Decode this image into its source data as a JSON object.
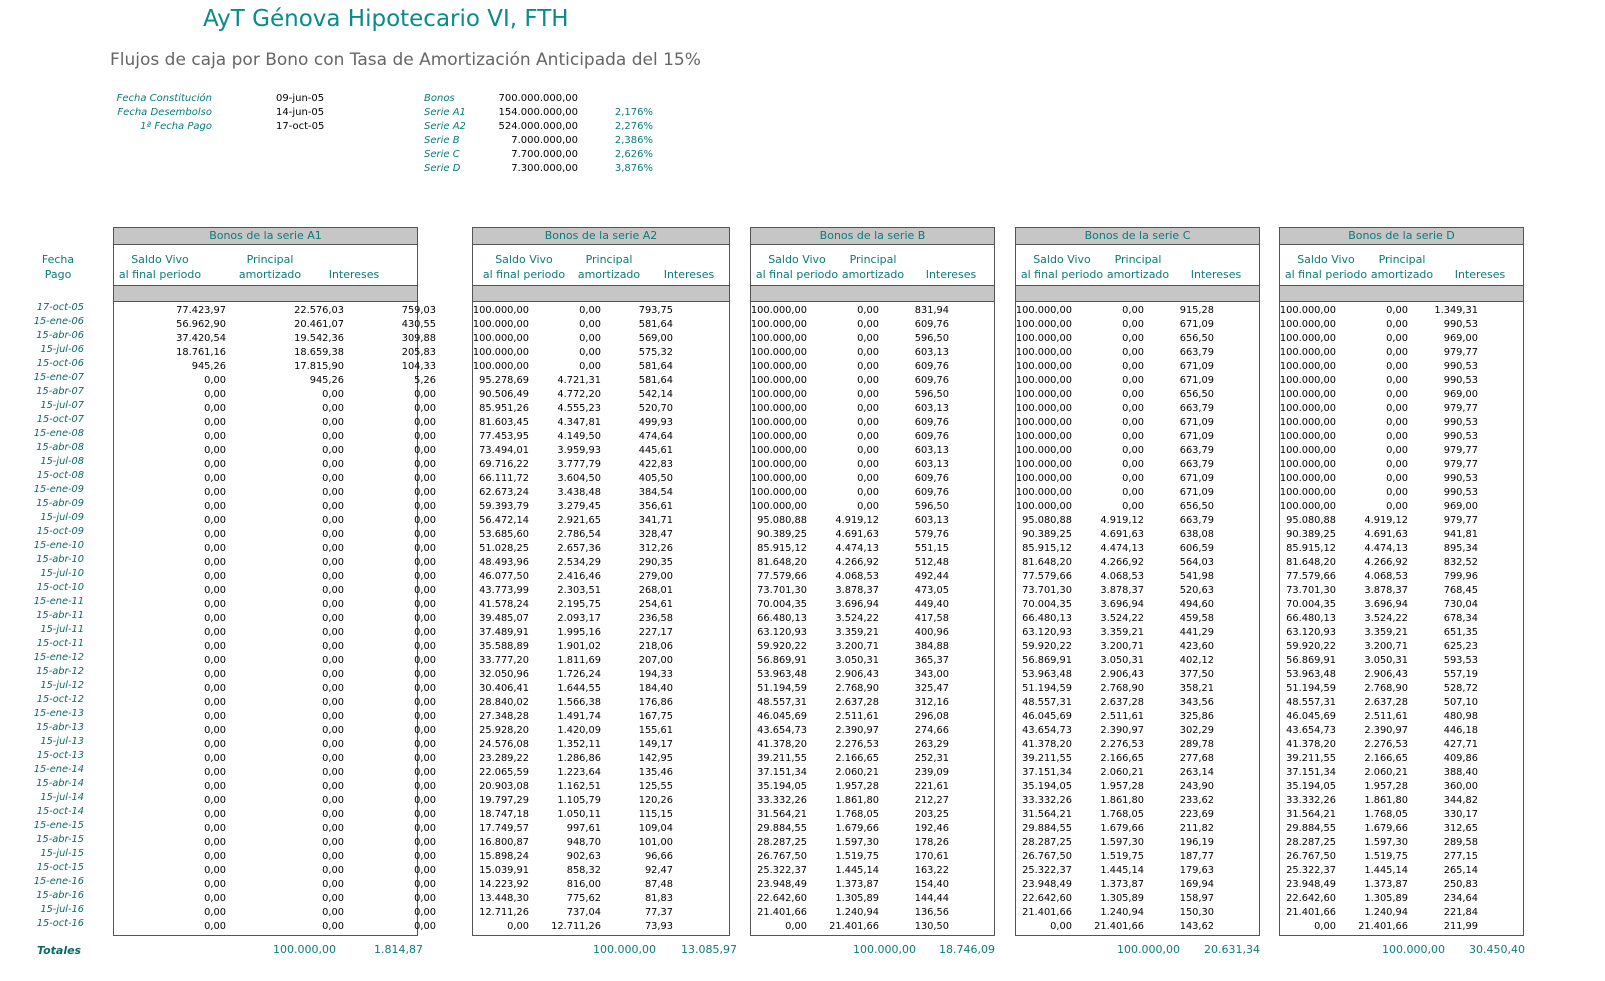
{
  "title": "AyT Génova Hipotecario VI, FTH",
  "subtitle": "Flujos de caja por Bono con Tasa de Amortización Anticipada del 15%",
  "info_left": [
    {
      "label": "Fecha Constitución",
      "value": "09-jun-05"
    },
    {
      "label": "Fecha Desembolso",
      "value": "14-jun-05"
    },
    {
      "label": "1ª Fecha Pago",
      "value": "17-oct-05"
    }
  ],
  "info_right": [
    {
      "label": "Bonos",
      "value": "700.000.000,00",
      "rate": ""
    },
    {
      "label": "Serie A1",
      "value": "154.000.000,00",
      "rate": "2,176%"
    },
    {
      "label": "Serie A2",
      "value": "524.000.000,00",
      "rate": "2,276%"
    },
    {
      "label": "Serie B",
      "value": "7.000.000,00",
      "rate": "2,386%"
    },
    {
      "label": "Serie C",
      "value": "7.700.000,00",
      "rate": "2,626%"
    },
    {
      "label": "Serie D",
      "value": "7.300.000,00",
      "rate": "3,876%"
    }
  ],
  "fecha_header": {
    "line1": "Fecha",
    "line2": "Pago"
  },
  "col_headers": {
    "saldo1": "Saldo Vivo",
    "saldo2": "al final periodo",
    "principal1": "Principal",
    "principal2": "amortizado",
    "intereses": "Intereses"
  },
  "totales_label": "Totales",
  "dates": [
    "17-oct-05",
    "15-ene-06",
    "15-abr-06",
    "15-jul-06",
    "15-oct-06",
    "15-ene-07",
    "15-abr-07",
    "15-jul-07",
    "15-oct-07",
    "15-ene-08",
    "15-abr-08",
    "15-jul-08",
    "15-oct-08",
    "15-ene-09",
    "15-abr-09",
    "15-jul-09",
    "15-oct-09",
    "15-ene-10",
    "15-abr-10",
    "15-jul-10",
    "15-oct-10",
    "15-ene-11",
    "15-abr-11",
    "15-jul-11",
    "15-oct-11",
    "15-ene-12",
    "15-abr-12",
    "15-jul-12",
    "15-oct-12",
    "15-ene-13",
    "15-abr-13",
    "15-jul-13",
    "15-oct-13",
    "15-ene-14",
    "15-abr-14",
    "15-jul-14",
    "15-oct-14",
    "15-ene-15",
    "15-abr-15",
    "15-jul-15",
    "15-oct-15",
    "15-ene-16",
    "15-abr-16",
    "15-jul-16",
    "15-oct-16"
  ],
  "series": [
    {
      "key": "a1",
      "title": "Bonos de la serie A1",
      "saldo": [
        "77.423,97",
        "56.962,90",
        "37.420,54",
        "18.761,16",
        "945,26",
        "0,00",
        "0,00",
        "0,00",
        "0,00",
        "0,00",
        "0,00",
        "0,00",
        "0,00",
        "0,00",
        "0,00",
        "0,00",
        "0,00",
        "0,00",
        "0,00",
        "0,00",
        "0,00",
        "0,00",
        "0,00",
        "0,00",
        "0,00",
        "0,00",
        "0,00",
        "0,00",
        "0,00",
        "0,00",
        "0,00",
        "0,00",
        "0,00",
        "0,00",
        "0,00",
        "0,00",
        "0,00",
        "0,00",
        "0,00",
        "0,00",
        "0,00",
        "0,00",
        "0,00",
        "0,00",
        "0,00"
      ],
      "principal": [
        "22.576,03",
        "20.461,07",
        "19.542,36",
        "18.659,38",
        "17.815,90",
        "945,26",
        "0,00",
        "0,00",
        "0,00",
        "0,00",
        "0,00",
        "0,00",
        "0,00",
        "0,00",
        "0,00",
        "0,00",
        "0,00",
        "0,00",
        "0,00",
        "0,00",
        "0,00",
        "0,00",
        "0,00",
        "0,00",
        "0,00",
        "0,00",
        "0,00",
        "0,00",
        "0,00",
        "0,00",
        "0,00",
        "0,00",
        "0,00",
        "0,00",
        "0,00",
        "0,00",
        "0,00",
        "0,00",
        "0,00",
        "0,00",
        "0,00",
        "0,00",
        "0,00",
        "0,00",
        "0,00"
      ],
      "intereses": [
        "759,03",
        "430,55",
        "309,88",
        "205,83",
        "104,33",
        "5,26",
        "0,00",
        "0,00",
        "0,00",
        "0,00",
        "0,00",
        "0,00",
        "0,00",
        "0,00",
        "0,00",
        "0,00",
        "0,00",
        "0,00",
        "0,00",
        "0,00",
        "0,00",
        "0,00",
        "0,00",
        "0,00",
        "0,00",
        "0,00",
        "0,00",
        "0,00",
        "0,00",
        "0,00",
        "0,00",
        "0,00",
        "0,00",
        "0,00",
        "0,00",
        "0,00",
        "0,00",
        "0,00",
        "0,00",
        "0,00",
        "0,00",
        "0,00",
        "0,00",
        "0,00",
        "0,00"
      ],
      "total_principal": "100.000,00",
      "total_intereses": "1.814,87"
    },
    {
      "key": "a2",
      "title": "Bonos de la serie A2",
      "saldo": [
        "100.000,00",
        "100.000,00",
        "100.000,00",
        "100.000,00",
        "100.000,00",
        "95.278,69",
        "90.506,49",
        "85.951,26",
        "81.603,45",
        "77.453,95",
        "73.494,01",
        "69.716,22",
        "66.111,72",
        "62.673,24",
        "59.393,79",
        "56.472,14",
        "53.685,60",
        "51.028,25",
        "48.493,96",
        "46.077,50",
        "43.773,99",
        "41.578,24",
        "39.485,07",
        "37.489,91",
        "35.588,89",
        "33.777,20",
        "32.050,96",
        "30.406,41",
        "28.840,02",
        "27.348,28",
        "25.928,20",
        "24.576,08",
        "23.289,22",
        "22.065,59",
        "20.903,08",
        "19.797,29",
        "18.747,18",
        "17.749,57",
        "16.800,87",
        "15.898,24",
        "15.039,91",
        "14.223,92",
        "13.448,30",
        "12.711,26",
        "0,00"
      ],
      "principal": [
        "0,00",
        "0,00",
        "0,00",
        "0,00",
        "0,00",
        "4.721,31",
        "4.772,20",
        "4.555,23",
        "4.347,81",
        "4.149,50",
        "3.959,93",
        "3.777,79",
        "3.604,50",
        "3.438,48",
        "3.279,45",
        "2.921,65",
        "2.786,54",
        "2.657,36",
        "2.534,29",
        "2.416,46",
        "2.303,51",
        "2.195,75",
        "2.093,17",
        "1.995,16",
        "1.901,02",
        "1.811,69",
        "1.726,24",
        "1.644,55",
        "1.566,38",
        "1.491,74",
        "1.420,09",
        "1.352,11",
        "1.286,86",
        "1.223,64",
        "1.162,51",
        "1.105,79",
        "1.050,11",
        "997,61",
        "948,70",
        "902,63",
        "858,32",
        "816,00",
        "775,62",
        "737,04",
        "12.711,26"
      ],
      "intereses": [
        "793,75",
        "581,64",
        "569,00",
        "575,32",
        "581,64",
        "581,64",
        "542,14",
        "520,70",
        "499,93",
        "474,64",
        "445,61",
        "422,83",
        "405,50",
        "384,54",
        "356,61",
        "341,71",
        "328,47",
        "312,26",
        "290,35",
        "279,00",
        "268,01",
        "254,61",
        "236,58",
        "227,17",
        "218,06",
        "207,00",
        "194,33",
        "184,40",
        "176,86",
        "167,75",
        "155,61",
        "149,17",
        "142,95",
        "135,46",
        "125,55",
        "120,26",
        "115,15",
        "109,04",
        "101,00",
        "96,66",
        "92,47",
        "87,48",
        "81,83",
        "77,37",
        "73,93"
      ],
      "total_principal": "100.000,00",
      "total_intereses": "13.085,97"
    },
    {
      "key": "b",
      "title": "Bonos de la serie B",
      "saldo": [
        "100.000,00",
        "100.000,00",
        "100.000,00",
        "100.000,00",
        "100.000,00",
        "100.000,00",
        "100.000,00",
        "100.000,00",
        "100.000,00",
        "100.000,00",
        "100.000,00",
        "100.000,00",
        "100.000,00",
        "100.000,00",
        "100.000,00",
        "95.080,88",
        "90.389,25",
        "85.915,12",
        "81.648,20",
        "77.579,66",
        "73.701,30",
        "70.004,35",
        "66.480,13",
        "63.120,93",
        "59.920,22",
        "56.869,91",
        "53.963,48",
        "51.194,59",
        "48.557,31",
        "46.045,69",
        "43.654,73",
        "41.378,20",
        "39.211,55",
        "37.151,34",
        "35.194,05",
        "33.332,26",
        "31.564,21",
        "29.884,55",
        "28.287,25",
        "26.767,50",
        "25.322,37",
        "23.948,49",
        "22.642,60",
        "21.401,66",
        "0,00"
      ],
      "principal": [
        "0,00",
        "0,00",
        "0,00",
        "0,00",
        "0,00",
        "0,00",
        "0,00",
        "0,00",
        "0,00",
        "0,00",
        "0,00",
        "0,00",
        "0,00",
        "0,00",
        "0,00",
        "4.919,12",
        "4.691,63",
        "4.474,13",
        "4.266,92",
        "4.068,53",
        "3.878,37",
        "3.696,94",
        "3.524,22",
        "3.359,21",
        "3.200,71",
        "3.050,31",
        "2.906,43",
        "2.768,90",
        "2.637,28",
        "2.511,61",
        "2.390,97",
        "2.276,53",
        "2.166,65",
        "2.060,21",
        "1.957,28",
        "1.861,80",
        "1.768,05",
        "1.679,66",
        "1.597,30",
        "1.519,75",
        "1.445,14",
        "1.373,87",
        "1.305,89",
        "1.240,94",
        "21.401,66"
      ],
      "intereses": [
        "831,94",
        "609,76",
        "596,50",
        "603,13",
        "609,76",
        "609,76",
        "596,50",
        "603,13",
        "609,76",
        "609,76",
        "603,13",
        "603,13",
        "609,76",
        "609,76",
        "596,50",
        "603,13",
        "579,76",
        "551,15",
        "512,48",
        "492,44",
        "473,05",
        "449,40",
        "417,58",
        "400,96",
        "384,88",
        "365,37",
        "343,00",
        "325,47",
        "312,16",
        "296,08",
        "274,66",
        "263,29",
        "252,31",
        "239,09",
        "221,61",
        "212,27",
        "203,25",
        "192,46",
        "178,26",
        "170,61",
        "163,22",
        "154,40",
        "144,44",
        "136,56",
        "130,50"
      ],
      "total_principal": "100.000,00",
      "total_intereses": "18.746,09"
    },
    {
      "key": "c",
      "title": "Bonos de la serie C",
      "saldo": [
        "100.000,00",
        "100.000,00",
        "100.000,00",
        "100.000,00",
        "100.000,00",
        "100.000,00",
        "100.000,00",
        "100.000,00",
        "100.000,00",
        "100.000,00",
        "100.000,00",
        "100.000,00",
        "100.000,00",
        "100.000,00",
        "100.000,00",
        "95.080,88",
        "90.389,25",
        "85.915,12",
        "81.648,20",
        "77.579,66",
        "73.701,30",
        "70.004,35",
        "66.480,13",
        "63.120,93",
        "59.920,22",
        "56.869,91",
        "53.963,48",
        "51.194,59",
        "48.557,31",
        "46.045,69",
        "43.654,73",
        "41.378,20",
        "39.211,55",
        "37.151,34",
        "35.194,05",
        "33.332,26",
        "31.564,21",
        "29.884,55",
        "28.287,25",
        "26.767,50",
        "25.322,37",
        "23.948,49",
        "22.642,60",
        "21.401,66",
        "0,00"
      ],
      "principal": [
        "0,00",
        "0,00",
        "0,00",
        "0,00",
        "0,00",
        "0,00",
        "0,00",
        "0,00",
        "0,00",
        "0,00",
        "0,00",
        "0,00",
        "0,00",
        "0,00",
        "0,00",
        "4.919,12",
        "4.691,63",
        "4.474,13",
        "4.266,92",
        "4.068,53",
        "3.878,37",
        "3.696,94",
        "3.524,22",
        "3.359,21",
        "3.200,71",
        "3.050,31",
        "2.906,43",
        "2.768,90",
        "2.637,28",
        "2.511,61",
        "2.390,97",
        "2.276,53",
        "2.166,65",
        "2.060,21",
        "1.957,28",
        "1.861,80",
        "1.768,05",
        "1.679,66",
        "1.597,30",
        "1.519,75",
        "1.445,14",
        "1.373,87",
        "1.305,89",
        "1.240,94",
        "21.401,66"
      ],
      "intereses": [
        "915,28",
        "671,09",
        "656,50",
        "663,79",
        "671,09",
        "671,09",
        "656,50",
        "663,79",
        "671,09",
        "671,09",
        "663,79",
        "663,79",
        "671,09",
        "671,09",
        "656,50",
        "663,79",
        "638,08",
        "606,59",
        "564,03",
        "541,98",
        "520,63",
        "494,60",
        "459,58",
        "441,29",
        "423,60",
        "402,12",
        "377,50",
        "358,21",
        "343,56",
        "325,86",
        "302,29",
        "289,78",
        "277,68",
        "263,14",
        "243,90",
        "233,62",
        "223,69",
        "211,82",
        "196,19",
        "187,77",
        "179,63",
        "169,94",
        "158,97",
        "150,30",
        "143,62"
      ],
      "total_principal": "100.000,00",
      "total_intereses": "20.631,34"
    },
    {
      "key": "d",
      "title": "Bonos de la serie D",
      "saldo": [
        "100.000,00",
        "100.000,00",
        "100.000,00",
        "100.000,00",
        "100.000,00",
        "100.000,00",
        "100.000,00",
        "100.000,00",
        "100.000,00",
        "100.000,00",
        "100.000,00",
        "100.000,00",
        "100.000,00",
        "100.000,00",
        "100.000,00",
        "95.080,88",
        "90.389,25",
        "85.915,12",
        "81.648,20",
        "77.579,66",
        "73.701,30",
        "70.004,35",
        "66.480,13",
        "63.120,93",
        "59.920,22",
        "56.869,91",
        "53.963,48",
        "51.194,59",
        "48.557,31",
        "46.045,69",
        "43.654,73",
        "41.378,20",
        "39.211,55",
        "37.151,34",
        "35.194,05",
        "33.332,26",
        "31.564,21",
        "29.884,55",
        "28.287,25",
        "26.767,50",
        "25.322,37",
        "23.948,49",
        "22.642,60",
        "21.401,66",
        "0,00"
      ],
      "principal": [
        "0,00",
        "0,00",
        "0,00",
        "0,00",
        "0,00",
        "0,00",
        "0,00",
        "0,00",
        "0,00",
        "0,00",
        "0,00",
        "0,00",
        "0,00",
        "0,00",
        "0,00",
        "4.919,12",
        "4.691,63",
        "4.474,13",
        "4.266,92",
        "4.068,53",
        "3.878,37",
        "3.696,94",
        "3.524,22",
        "3.359,21",
        "3.200,71",
        "3.050,31",
        "2.906,43",
        "2.768,90",
        "2.637,28",
        "2.511,61",
        "2.390,97",
        "2.276,53",
        "2.166,65",
        "2.060,21",
        "1.957,28",
        "1.861,80",
        "1.768,05",
        "1.679,66",
        "1.597,30",
        "1.519,75",
        "1.445,14",
        "1.373,87",
        "1.305,89",
        "1.240,94",
        "21.401,66"
      ],
      "intereses": [
        "1.349,31",
        "990,53",
        "969,00",
        "979,77",
        "990,53",
        "990,53",
        "969,00",
        "979,77",
        "990,53",
        "990,53",
        "979,77",
        "979,77",
        "990,53",
        "990,53",
        "969,00",
        "979,77",
        "941,81",
        "895,34",
        "832,52",
        "799,96",
        "768,45",
        "730,04",
        "678,34",
        "651,35",
        "625,23",
        "593,53",
        "557,19",
        "528,72",
        "507,10",
        "480,98",
        "446,18",
        "427,71",
        "409,86",
        "388,40",
        "360,00",
        "344,82",
        "330,17",
        "312,65",
        "289,58",
        "277,15",
        "265,14",
        "250,83",
        "234,64",
        "221,84",
        "211,99"
      ],
      "total_principal": "100.000,00",
      "total_intereses": "30.450,40"
    }
  ]
}
